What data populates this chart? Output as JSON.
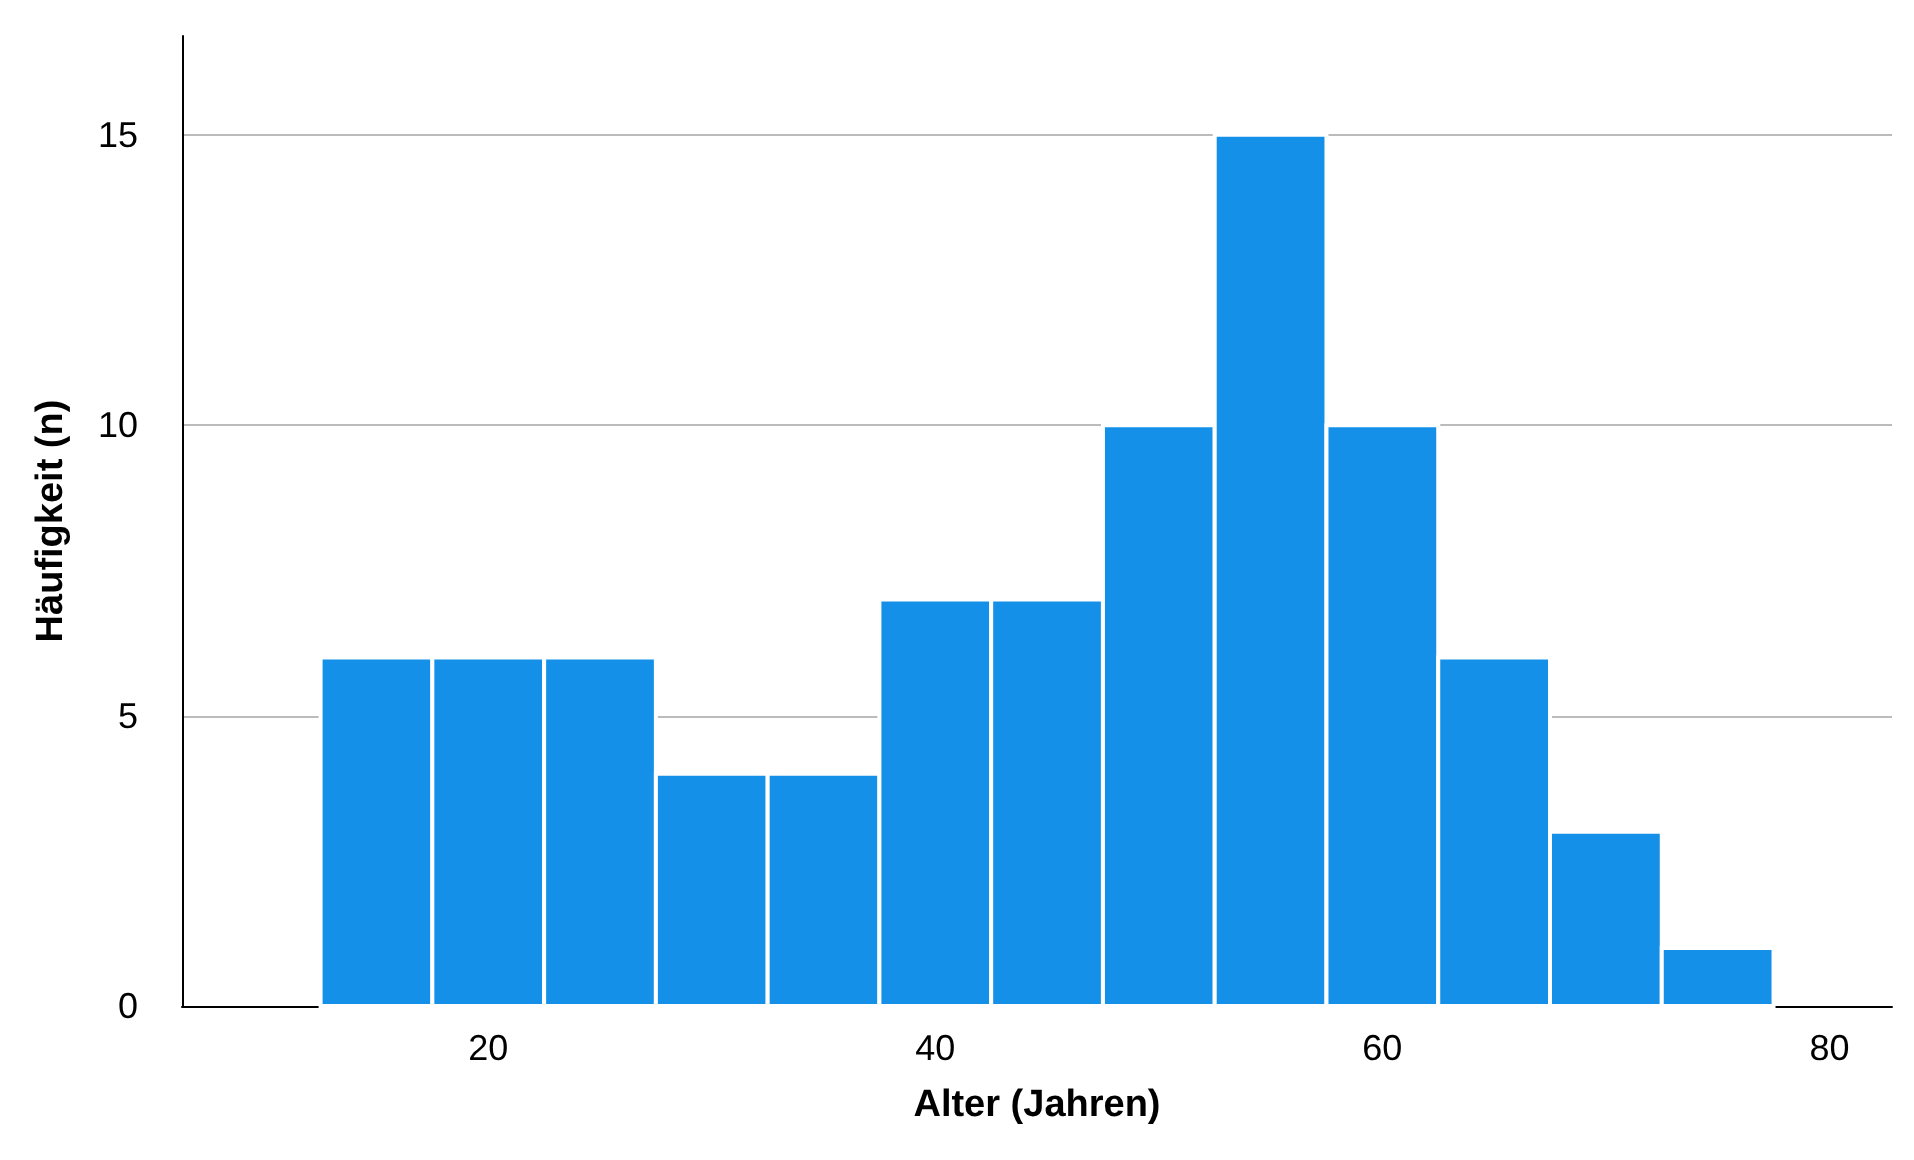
{
  "chart_data": {
    "type": "histogram",
    "xlabel": "Alter (Jahren)",
    "ylabel": "Häufigkeit (n)",
    "bins": [
      12.5,
      17.5,
      22.5,
      27.5,
      32.5,
      37.5,
      42.5,
      47.5,
      52.5,
      57.5,
      62.5,
      67.5,
      72.5,
      77.5
    ],
    "values": [
      6,
      6,
      6,
      4,
      4,
      7,
      7,
      10,
      15,
      10,
      6,
      3,
      1
    ],
    "color": "#1490e8",
    "xlim": [
      6.3,
      82.8
    ],
    "xticks": [
      20,
      40,
      60,
      80
    ],
    "ylim": [
      0,
      16.7
    ],
    "yticks": [
      0,
      5,
      10,
      15
    ],
    "grid": "y"
  }
}
